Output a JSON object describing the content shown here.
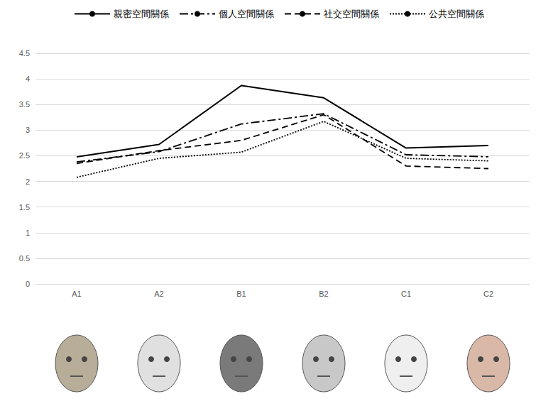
{
  "chart_data": {
    "type": "line",
    "categories": [
      "A1",
      "A2",
      "B1",
      "B2",
      "C1",
      "C2"
    ],
    "series": [
      {
        "name": "親密空間關係",
        "color": "#000000",
        "line_style": "solid",
        "values": [
          2.48,
          2.72,
          3.87,
          3.63,
          2.65,
          2.7
        ]
      },
      {
        "name": "個人空間關係",
        "color": "#000000",
        "line_style": "dashdot",
        "values": [
          2.38,
          2.58,
          3.12,
          3.32,
          2.52,
          2.48
        ]
      },
      {
        "name": "社交空間關係",
        "color": "#000000",
        "line_style": "dashed",
        "values": [
          2.35,
          2.6,
          2.8,
          3.3,
          2.3,
          2.25
        ]
      },
      {
        "name": "公共空間關係",
        "color": "#000000",
        "line_style": "dotted",
        "values": [
          2.08,
          2.45,
          2.57,
          3.17,
          2.45,
          2.4
        ]
      }
    ],
    "ylim": [
      0,
      4.5
    ],
    "yticks": [
      0,
      0.5,
      1,
      1.5,
      2,
      2.5,
      3,
      3.5,
      4,
      4.5
    ],
    "marker": "none",
    "grid": true,
    "legend": "top"
  }
}
